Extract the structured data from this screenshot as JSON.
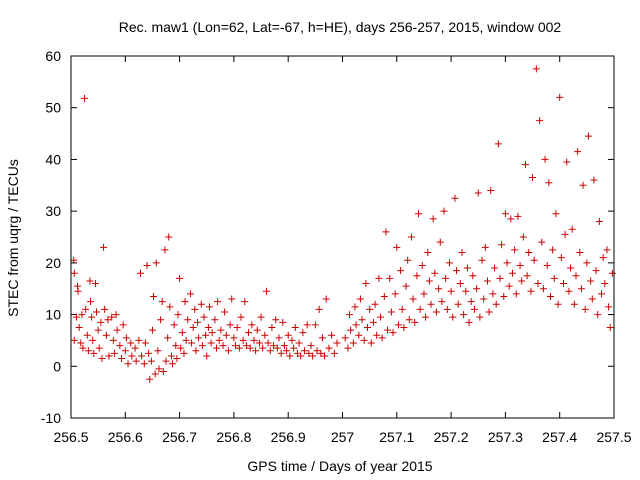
{
  "chart_data": {
    "type": "scatter",
    "title": "Rec. maw1 (Lon=62, Lat=-67, h=HE), days 256-257, 2015, window 002",
    "xlabel": "GPS time / Days of year 2015",
    "ylabel": "STEC from uqrg / TECUs",
    "xlim": [
      256.5,
      257.5
    ],
    "ylim": [
      -10,
      60
    ],
    "x_ticks": [
      "256.5",
      "256.6",
      "256.7",
      "256.8",
      "256.9",
      "257",
      "257.1",
      "257.2",
      "257.3",
      "257.4",
      "257.5"
    ],
    "y_ticks": [
      "-10",
      "0",
      "10",
      "20",
      "30",
      "40",
      "50",
      "60"
    ],
    "grid": false,
    "marker": "plus",
    "color": "#cc0000",
    "points": [
      [
        256.505,
        20.5
      ],
      [
        256.506,
        18
      ],
      [
        256.506,
        5
      ],
      [
        256.51,
        9.5
      ],
      [
        256.512,
        15.5
      ],
      [
        256.513,
        14.5
      ],
      [
        256.515,
        7.5
      ],
      [
        256.518,
        4.5
      ],
      [
        256.52,
        10
      ],
      [
        256.522,
        3.5
      ],
      [
        256.525,
        51.8
      ],
      [
        256.527,
        11
      ],
      [
        256.53,
        6
      ],
      [
        256.532,
        3
      ],
      [
        256.535,
        16.5
      ],
      [
        256.536,
        12.5
      ],
      [
        256.538,
        9.5
      ],
      [
        256.54,
        5
      ],
      [
        256.542,
        2.5
      ],
      [
        256.545,
        16
      ],
      [
        256.547,
        10.5
      ],
      [
        256.55,
        7
      ],
      [
        256.552,
        3.5
      ],
      [
        256.555,
        8.5
      ],
      [
        256.557,
        1.5
      ],
      [
        256.56,
        23
      ],
      [
        256.562,
        11
      ],
      [
        256.565,
        6
      ],
      [
        256.568,
        9
      ],
      [
        256.57,
        2
      ],
      [
        256.575,
        9.5
      ],
      [
        256.578,
        5
      ],
      [
        256.58,
        2.5
      ],
      [
        256.583,
        10
      ],
      [
        256.585,
        7
      ],
      [
        256.59,
        4
      ],
      [
        256.593,
        1.5
      ],
      [
        256.596,
        8
      ],
      [
        256.6,
        3
      ],
      [
        256.602,
        5.5
      ],
      [
        256.605,
        0.5
      ],
      [
        256.61,
        4.5
      ],
      [
        256.612,
        2
      ],
      [
        256.618,
        3.5
      ],
      [
        256.62,
        1
      ],
      [
        256.625,
        5
      ],
      [
        256.628,
        18
      ],
      [
        256.63,
        2
      ],
      [
        256.635,
        0.5
      ],
      [
        256.637,
        4.5
      ],
      [
        256.64,
        19.5
      ],
      [
        256.643,
        2.5
      ],
      [
        256.645,
        -2.5
      ],
      [
        256.648,
        1
      ],
      [
        256.65,
        7
      ],
      [
        256.652,
        13.5
      ],
      [
        256.655,
        -1.5
      ],
      [
        256.657,
        20
      ],
      [
        256.66,
        3
      ],
      [
        256.662,
        -0.5
      ],
      [
        256.665,
        9
      ],
      [
        256.668,
        12.5
      ],
      [
        256.67,
        -1
      ],
      [
        256.673,
        22.5
      ],
      [
        256.675,
        1
      ],
      [
        256.678,
        5.5
      ],
      [
        256.68,
        25
      ],
      [
        256.682,
        11.5
      ],
      [
        256.685,
        2
      ],
      [
        256.687,
        0.5
      ],
      [
        256.69,
        8
      ],
      [
        256.693,
        4
      ],
      [
        256.695,
        1.5
      ],
      [
        256.697,
        10
      ],
      [
        256.7,
        17
      ],
      [
        256.702,
        3.5
      ],
      [
        256.705,
        6.5
      ],
      [
        256.708,
        2.5
      ],
      [
        256.71,
        12.5
      ],
      [
        256.712,
        5
      ],
      [
        256.715,
        9
      ],
      [
        256.72,
        14
      ],
      [
        256.722,
        4.5
      ],
      [
        256.725,
        7.5
      ],
      [
        256.728,
        11
      ],
      [
        256.73,
        3
      ],
      [
        256.733,
        8.5
      ],
      [
        256.735,
        5.5
      ],
      [
        256.74,
        12
      ],
      [
        256.742,
        4
      ],
      [
        256.745,
        9.5
      ],
      [
        256.748,
        6
      ],
      [
        256.75,
        2
      ],
      [
        256.753,
        7.5
      ],
      [
        256.755,
        11.5
      ],
      [
        256.758,
        4.5
      ],
      [
        256.76,
        6.5
      ],
      [
        256.765,
        9
      ],
      [
        256.768,
        3.5
      ],
      [
        256.77,
        12.5
      ],
      [
        256.773,
        5
      ],
      [
        256.776,
        7
      ],
      [
        256.78,
        4
      ],
      [
        256.783,
        10.5
      ],
      [
        256.786,
        6
      ],
      [
        256.79,
        3
      ],
      [
        256.793,
        8
      ],
      [
        256.796,
        13
      ],
      [
        256.8,
        5.5
      ],
      [
        256.803,
        4
      ],
      [
        256.806,
        7.5
      ],
      [
        256.81,
        3.5
      ],
      [
        256.813,
        9.5
      ],
      [
        256.817,
        5
      ],
      [
        256.82,
        12.5
      ],
      [
        256.823,
        4
      ],
      [
        256.827,
        6.5
      ],
      [
        256.83,
        3.5
      ],
      [
        256.833,
        8
      ],
      [
        256.837,
        5
      ],
      [
        256.84,
        3
      ],
      [
        256.843,
        7
      ],
      [
        256.847,
        4.5
      ],
      [
        256.85,
        9.5
      ],
      [
        256.853,
        3.5
      ],
      [
        256.857,
        6
      ],
      [
        256.86,
        14.5
      ],
      [
        256.863,
        4.5
      ],
      [
        256.867,
        3
      ],
      [
        256.87,
        7.5
      ],
      [
        256.873,
        4
      ],
      [
        256.877,
        9
      ],
      [
        256.88,
        3.5
      ],
      [
        256.883,
        5.5
      ],
      [
        256.887,
        2.5
      ],
      [
        256.89,
        8.5
      ],
      [
        256.893,
        4
      ],
      [
        256.897,
        3
      ],
      [
        256.9,
        6
      ],
      [
        256.903,
        2
      ],
      [
        256.907,
        5
      ],
      [
        256.91,
        3.5
      ],
      [
        256.913,
        7.5
      ],
      [
        256.917,
        2.5
      ],
      [
        256.92,
        4.5
      ],
      [
        256.923,
        2
      ],
      [
        256.927,
        6.5
      ],
      [
        256.93,
        3
      ],
      [
        256.935,
        8
      ],
      [
        256.938,
        2.5
      ],
      [
        256.942,
        4
      ],
      [
        256.945,
        2
      ],
      [
        256.95,
        8
      ],
      [
        256.953,
        3
      ],
      [
        256.957,
        11
      ],
      [
        256.96,
        2.5
      ],
      [
        256.963,
        5.5
      ],
      [
        256.967,
        2
      ],
      [
        256.97,
        13
      ],
      [
        256.975,
        3.5
      ],
      [
        256.98,
        6
      ],
      [
        256.985,
        2.5
      ],
      [
        256.99,
        4.5
      ],
      [
        257.005,
        5.5
      ],
      [
        257.01,
        3.5
      ],
      [
        257.013,
        10
      ],
      [
        257.015,
        7
      ],
      [
        257.02,
        4.5
      ],
      [
        257.023,
        11.5
      ],
      [
        257.025,
        8
      ],
      [
        257.03,
        6
      ],
      [
        257.033,
        13
      ],
      [
        257.036,
        9
      ],
      [
        257.04,
        5
      ],
      [
        257.043,
        16
      ],
      [
        257.046,
        7.5
      ],
      [
        257.05,
        11
      ],
      [
        257.053,
        4.5
      ],
      [
        257.057,
        8.5
      ],
      [
        257.06,
        12
      ],
      [
        257.063,
        6
      ],
      [
        257.067,
        17
      ],
      [
        257.07,
        9.5
      ],
      [
        257.073,
        5.5
      ],
      [
        257.077,
        13.5
      ],
      [
        257.08,
        26
      ],
      [
        257.083,
        7
      ],
      [
        257.087,
        17
      ],
      [
        257.09,
        10.5
      ],
      [
        257.093,
        6.5
      ],
      [
        257.097,
        14
      ],
      [
        257.1,
        23
      ],
      [
        257.103,
        8
      ],
      [
        257.107,
        18.5
      ],
      [
        257.11,
        11
      ],
      [
        257.113,
        7.5
      ],
      [
        257.117,
        15.5
      ],
      [
        257.12,
        20.5
      ],
      [
        257.123,
        9
      ],
      [
        257.127,
        25
      ],
      [
        257.13,
        13
      ],
      [
        257.133,
        8.5
      ],
      [
        257.137,
        17.5
      ],
      [
        257.14,
        29.5
      ],
      [
        257.143,
        11
      ],
      [
        257.147,
        19.5
      ],
      [
        257.15,
        14
      ],
      [
        257.153,
        9.5
      ],
      [
        257.157,
        22
      ],
      [
        257.16,
        16.5
      ],
      [
        257.163,
        12
      ],
      [
        257.167,
        28.5
      ],
      [
        257.17,
        18
      ],
      [
        257.173,
        10.5
      ],
      [
        257.177,
        15
      ],
      [
        257.18,
        24
      ],
      [
        257.183,
        12.5
      ],
      [
        257.187,
        30
      ],
      [
        257.19,
        17
      ],
      [
        257.193,
        11
      ],
      [
        257.197,
        20
      ],
      [
        257.2,
        14.5
      ],
      [
        257.203,
        9.5
      ],
      [
        257.207,
        32.5
      ],
      [
        257.21,
        18.5
      ],
      [
        257.213,
        12
      ],
      [
        257.217,
        16
      ],
      [
        257.22,
        22
      ],
      [
        257.223,
        10
      ],
      [
        257.227,
        14.5
      ],
      [
        257.23,
        19
      ],
      [
        257.233,
        8.5
      ],
      [
        257.237,
        12.5
      ],
      [
        257.24,
        17.5
      ],
      [
        257.243,
        11
      ],
      [
        257.247,
        15
      ],
      [
        257.25,
        33.5
      ],
      [
        257.253,
        9.5
      ],
      [
        257.257,
        20.5
      ],
      [
        257.26,
        13
      ],
      [
        257.263,
        23
      ],
      [
        257.267,
        16.5
      ],
      [
        257.27,
        10.5
      ],
      [
        257.273,
        34
      ],
      [
        257.277,
        14
      ],
      [
        257.28,
        19
      ],
      [
        257.283,
        12
      ],
      [
        257.287,
        43
      ],
      [
        257.29,
        17
      ],
      [
        257.293,
        23.5
      ],
      [
        257.297,
        13.5
      ],
      [
        257.3,
        29.5
      ],
      [
        257.303,
        20
      ],
      [
        257.307,
        15.5
      ],
      [
        257.31,
        28.5
      ],
      [
        257.313,
        18
      ],
      [
        257.317,
        22.5
      ],
      [
        257.32,
        14
      ],
      [
        257.323,
        29
      ],
      [
        257.327,
        19.5
      ],
      [
        257.33,
        16.5
      ],
      [
        257.333,
        25
      ],
      [
        257.337,
        39
      ],
      [
        257.34,
        17.5
      ],
      [
        257.343,
        22
      ],
      [
        257.347,
        14.5
      ],
      [
        257.35,
        36.5
      ],
      [
        257.353,
        20.5
      ],
      [
        257.357,
        57.5
      ],
      [
        257.36,
        16
      ],
      [
        257.363,
        47.5
      ],
      [
        257.367,
        24
      ],
      [
        257.37,
        15
      ],
      [
        257.373,
        40
      ],
      [
        257.377,
        19.5
      ],
      [
        257.38,
        35.5
      ],
      [
        257.383,
        13.5
      ],
      [
        257.387,
        22.5
      ],
      [
        257.39,
        17
      ],
      [
        257.393,
        29.5
      ],
      [
        257.397,
        12
      ],
      [
        257.4,
        52
      ],
      [
        257.403,
        21
      ],
      [
        257.407,
        16
      ],
      [
        257.41,
        25.5
      ],
      [
        257.413,
        39.5
      ],
      [
        257.417,
        14.5
      ],
      [
        257.42,
        19
      ],
      [
        257.423,
        26.5
      ],
      [
        257.427,
        12
      ],
      [
        257.43,
        17.5
      ],
      [
        257.433,
        41.5
      ],
      [
        257.437,
        22
      ],
      [
        257.44,
        15
      ],
      [
        257.443,
        35
      ],
      [
        257.447,
        11
      ],
      [
        257.45,
        20
      ],
      [
        257.453,
        44.5
      ],
      [
        257.457,
        16.5
      ],
      [
        257.46,
        13
      ],
      [
        257.463,
        36
      ],
      [
        257.467,
        18.5
      ],
      [
        257.47,
        10
      ],
      [
        257.473,
        28
      ],
      [
        257.477,
        14
      ],
      [
        257.48,
        21
      ],
      [
        257.483,
        16
      ],
      [
        257.487,
        22.5
      ],
      [
        257.49,
        11.5
      ],
      [
        257.493,
        7.5
      ],
      [
        257.497,
        18
      ]
    ]
  }
}
